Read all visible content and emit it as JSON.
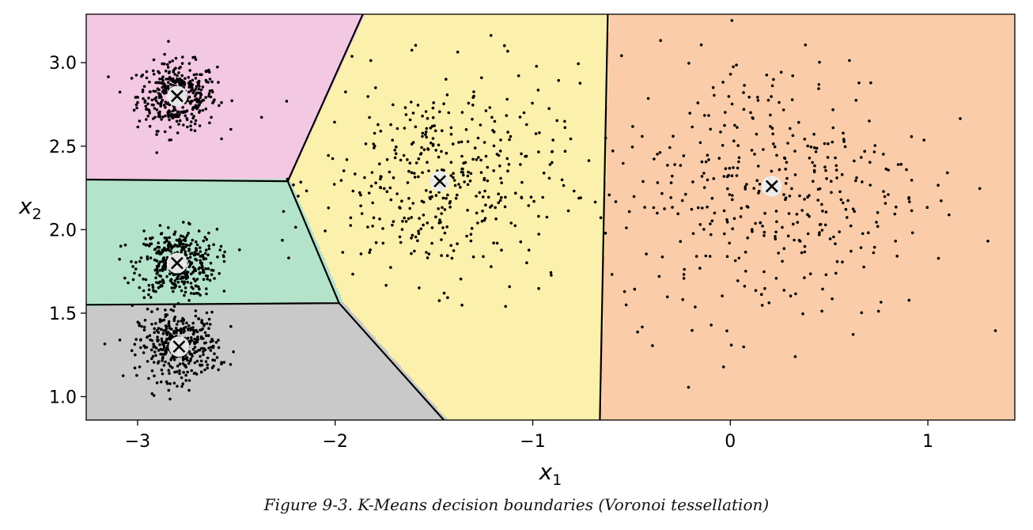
{
  "caption": "Figure 9-3. K-Means decision boundaries (Voronoi tessellation)",
  "chart_data": {
    "type": "scatter",
    "title": "",
    "xlabel": "x",
    "xlabel_sub": "1",
    "ylabel": "x",
    "ylabel_sub": "2",
    "xlim": [
      -3.26,
      1.44
    ],
    "ylim": [
      0.86,
      3.29
    ],
    "xticks": [
      -3,
      -2,
      -1,
      0,
      1
    ],
    "xtick_labels": [
      "−3",
      "−2",
      "−1",
      "0",
      "1"
    ],
    "yticks": [
      1.0,
      1.5,
      2.0,
      2.5,
      3.0
    ],
    "ytick_labels": [
      "1.0",
      "1.5",
      "2.0",
      "2.5",
      "3.0"
    ],
    "grid": false,
    "region_colors": [
      "#f3c8e3",
      "#b4e3cb",
      "#c9c9c9",
      "#fbf0ac",
      "#fbcca9"
    ],
    "boundaries": [
      [
        [
          -3.26,
          2.3
        ],
        [
          -2.24,
          2.29
        ],
        [
          -1.86,
          3.29
        ]
      ],
      [
        [
          -3.26,
          1.55
        ],
        [
          -1.98,
          1.56
        ],
        [
          -2.24,
          2.29
        ]
      ],
      [
        [
          -1.98,
          1.56
        ],
        [
          -1.45,
          0.86
        ]
      ],
      [
        [
          -0.66,
          0.86
        ],
        [
          -0.62,
          3.29
        ]
      ]
    ],
    "centroids": [
      {
        "x": -2.8,
        "y": 2.8
      },
      {
        "x": -2.8,
        "y": 1.8
      },
      {
        "x": -2.79,
        "y": 1.3
      },
      {
        "x": -1.47,
        "y": 2.29
      },
      {
        "x": 0.21,
        "y": 2.26
      }
    ],
    "clusters": [
      {
        "center": [
          -2.8,
          2.8
        ],
        "std": 0.1,
        "count": 400
      },
      {
        "center": [
          -2.8,
          1.8
        ],
        "std": 0.1,
        "count": 400
      },
      {
        "center": [
          -2.79,
          1.3
        ],
        "std": 0.1,
        "count": 400
      },
      {
        "center": [
          -1.47,
          2.29
        ],
        "std": 0.3,
        "count": 400
      },
      {
        "center": [
          0.21,
          2.26
        ],
        "std": 0.4,
        "count": 400
      }
    ],
    "point_color": "#000000",
    "centroid_fill": "#eeeeee",
    "centroid_marker_color": "#000000"
  }
}
